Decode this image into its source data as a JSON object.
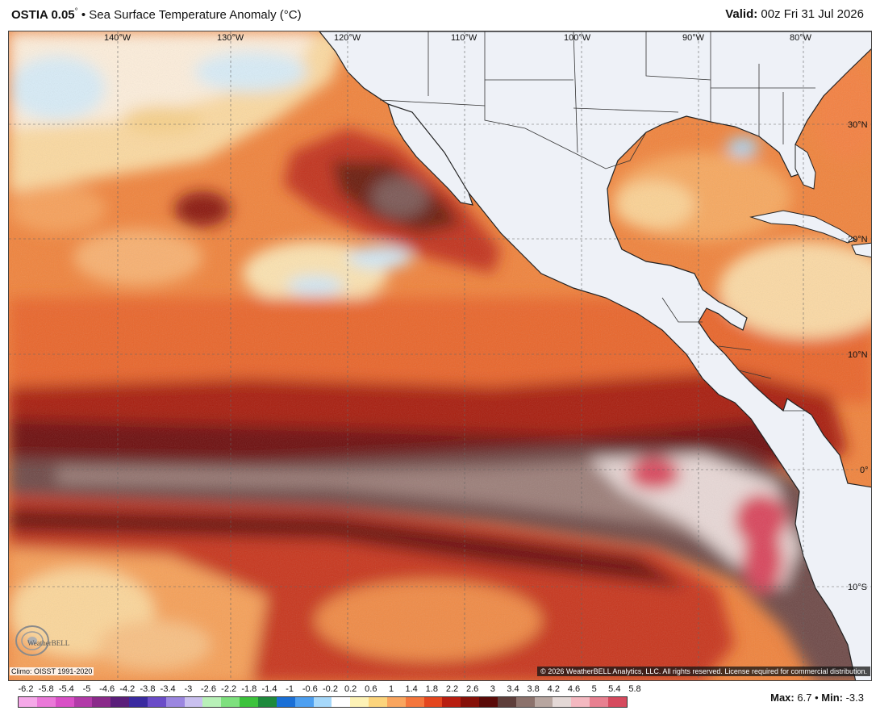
{
  "header": {
    "model": "OSTIA 0.05",
    "degree_symbol": "°",
    "product": "Sea Surface Temperature Anomaly (°C)",
    "valid_label": "Valid:",
    "valid_time": "00z Fri 31 Jul 2026"
  },
  "map": {
    "longitude_labels": [
      "140°W",
      "130°W",
      "120°W",
      "110°W",
      "100°W",
      "90°W",
      "80°W"
    ],
    "latitude_labels": [
      "30°N",
      "20°N",
      "10°N",
      "0°",
      "10°S"
    ],
    "colors": {
      "land": "#eef1f7",
      "coast": "#222222",
      "border": "#333333"
    }
  },
  "footer": {
    "climo": "Climo: OISST 1991-2020",
    "copyright": "© 2026 WeatherBELL Analytics, LLC. All rights reserved. License required for commercial distribution.",
    "logo_text": "WeatherBELL",
    "max_label": "Max:",
    "max_value": "6.7",
    "min_label": "Min:",
    "min_value": "-3.3"
  },
  "colorbar": {
    "ticks": [
      "-6.2",
      "-5.8",
      "-5.4",
      "-5",
      "-4.6",
      "-4.2",
      "-3.8",
      "-3.4",
      "-3",
      "-2.6",
      "-2.2",
      "-1.8",
      "-1.4",
      "-1",
      "-0.6",
      "-0.2",
      "0.2",
      "0.6",
      "1",
      "1.4",
      "1.8",
      "2.2",
      "2.6",
      "3",
      "3.4",
      "3.8",
      "4.2",
      "4.6",
      "5",
      "5.4",
      "5.8"
    ],
    "colors": [
      "#f5a8e8",
      "#ea78d8",
      "#d94fc6",
      "#b23aa8",
      "#8a2a8a",
      "#5a1e7a",
      "#3a2aa0",
      "#6a4cc8",
      "#9b86e0",
      "#c9c0ef",
      "#b8f0b8",
      "#7ee07e",
      "#3cc23c",
      "#1e8a3c",
      "#1a6fd6",
      "#4d9ff0",
      "#a6d8fa",
      "#ffffff",
      "#fdf2b6",
      "#fcd47c",
      "#f9a55e",
      "#f4763c",
      "#e4461e",
      "#b81e10",
      "#861008",
      "#5a0a08",
      "#5e3e3a",
      "#8c726c",
      "#b8a6a0",
      "#e4d8d6",
      "#f4b8c0",
      "#e88090",
      "#d64a5e"
    ]
  }
}
